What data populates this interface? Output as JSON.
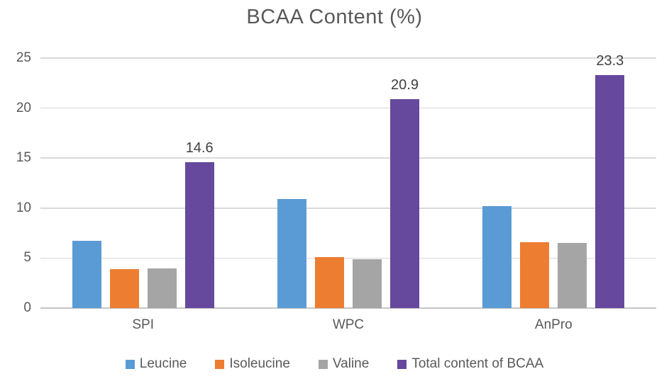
{
  "chart_data": {
    "type": "bar",
    "title": "BCAA Content (%)",
    "categories": [
      "SPI",
      "WPC",
      "AnPro"
    ],
    "series": [
      {
        "name": "Leucine",
        "color": "#5B9BD5",
        "values": [
          6.7,
          10.9,
          10.2
        ]
      },
      {
        "name": "Isoleucine",
        "color": "#ED7D31",
        "values": [
          3.9,
          5.1,
          6.6
        ]
      },
      {
        "name": "Valine",
        "color": "#A5A5A5",
        "values": [
          4.0,
          4.9,
          6.5
        ]
      },
      {
        "name": "Total content of BCAA",
        "color": "#66489D",
        "values": [
          14.6,
          20.9,
          23.3
        ],
        "data_labels": [
          "14.6",
          "20.9",
          "23.3"
        ]
      }
    ],
    "xlabel": "",
    "ylabel": "",
    "ylim": [
      0,
      25
    ],
    "yticks": [
      0,
      5,
      10,
      15,
      20,
      25
    ],
    "grid": true,
    "legend_position": "bottom",
    "colors": {
      "background": "#FFFFFF",
      "text": "#595959",
      "data_label_text": "#3F3F3F",
      "gridline": "#D9D9D9",
      "axis_line": "#C6C6C6"
    }
  }
}
